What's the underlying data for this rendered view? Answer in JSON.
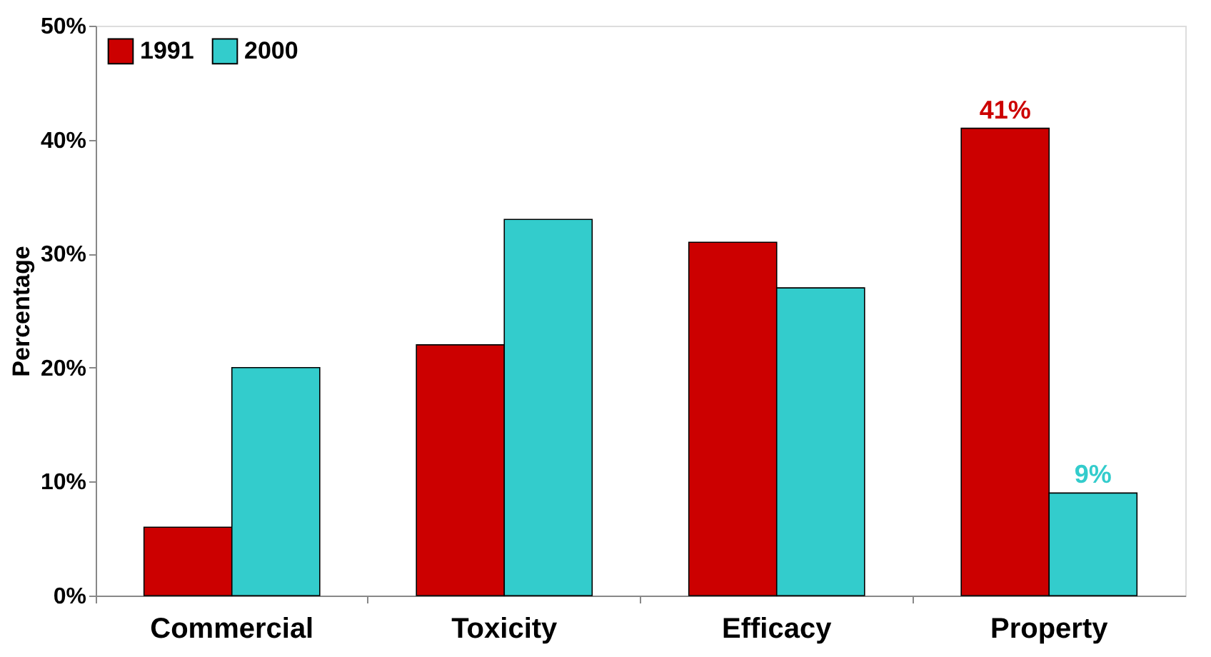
{
  "chart_data": {
    "type": "bar",
    "ylabel": "Percentage",
    "categories": [
      "Commercial",
      "Toxicity",
      "Efficacy",
      "Property"
    ],
    "series": [
      {
        "name": "1991",
        "color": "#cc0000",
        "values": [
          6,
          22,
          31,
          41
        ],
        "value_labels": [
          null,
          null,
          null,
          "41%"
        ]
      },
      {
        "name": "2000",
        "color": "#33cccc",
        "values": [
          20,
          33,
          27,
          9
        ],
        "value_labels": [
          null,
          null,
          null,
          "9%"
        ]
      }
    ],
    "ylim": [
      0,
      50
    ],
    "yticks": [
      {
        "value": 0,
        "label": "0%"
      },
      {
        "value": 10,
        "label": "10%"
      },
      {
        "value": 20,
        "label": "20%"
      },
      {
        "value": 30,
        "label": "30%"
      },
      {
        "value": 40,
        "label": "40%"
      },
      {
        "value": 50,
        "label": "50%"
      }
    ],
    "grid": false,
    "legend": "top left"
  }
}
